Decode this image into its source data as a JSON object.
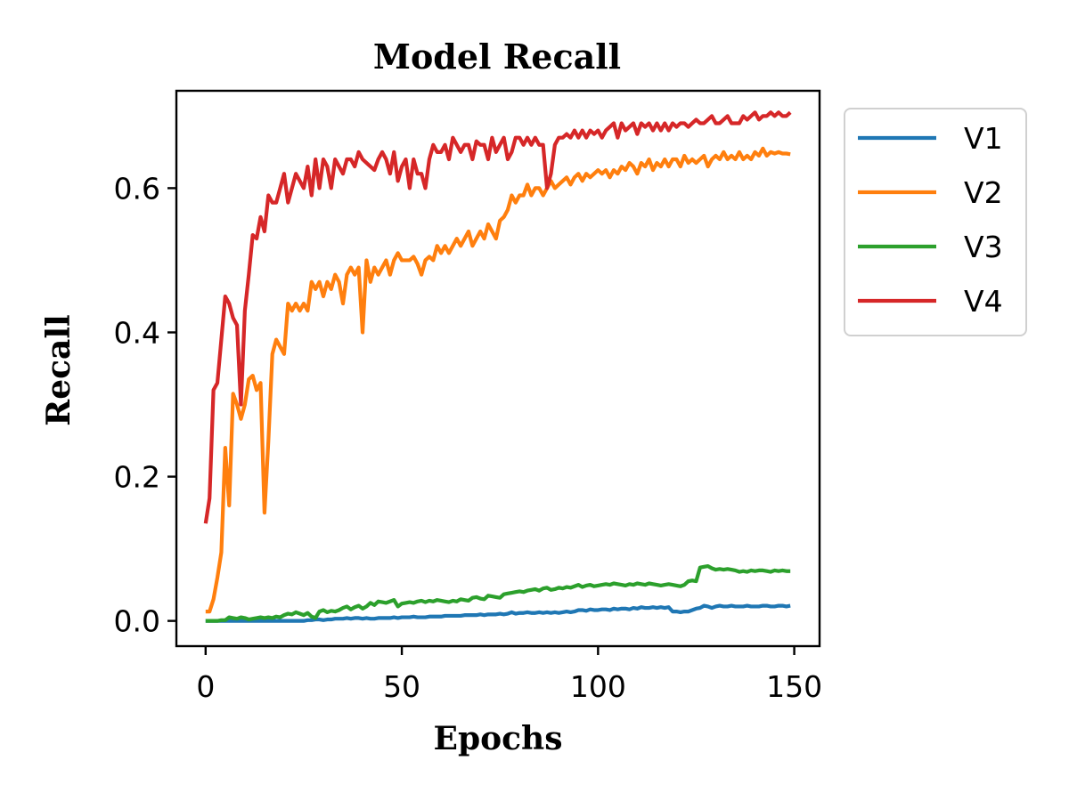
{
  "chart_data": {
    "type": "line",
    "title": "Model Recall",
    "xlabel": "Epochs",
    "ylabel": "Recall",
    "xlim": [
      -7.45,
      156.45
    ],
    "ylim": [
      -0.035,
      0.735
    ],
    "xticks": [
      0,
      50,
      100,
      150
    ],
    "xtick_labels": [
      "0",
      "50",
      "100",
      "150"
    ],
    "yticks": [
      0.0,
      0.2,
      0.4,
      0.6
    ],
    "ytick_labels": [
      "0.0",
      "0.2",
      "0.4",
      "0.6"
    ],
    "grid": false,
    "legend_position": "outside-right-top",
    "x": [
      0,
      1,
      2,
      3,
      4,
      5,
      6,
      7,
      8,
      9,
      10,
      11,
      12,
      13,
      14,
      15,
      16,
      17,
      18,
      19,
      20,
      21,
      22,
      23,
      24,
      25,
      26,
      27,
      28,
      29,
      30,
      31,
      32,
      33,
      34,
      35,
      36,
      37,
      38,
      39,
      40,
      41,
      42,
      43,
      44,
      45,
      46,
      47,
      48,
      49,
      50,
      51,
      52,
      53,
      54,
      55,
      56,
      57,
      58,
      59,
      60,
      61,
      62,
      63,
      64,
      65,
      66,
      67,
      68,
      69,
      70,
      71,
      72,
      73,
      74,
      75,
      76,
      77,
      78,
      79,
      80,
      81,
      82,
      83,
      84,
      85,
      86,
      87,
      88,
      89,
      90,
      91,
      92,
      93,
      94,
      95,
      96,
      97,
      98,
      99,
      100,
      101,
      102,
      103,
      104,
      105,
      106,
      107,
      108,
      109,
      110,
      111,
      112,
      113,
      114,
      115,
      116,
      117,
      118,
      119,
      120,
      121,
      122,
      123,
      124,
      125,
      126,
      127,
      128,
      129,
      130,
      131,
      132,
      133,
      134,
      135,
      136,
      137,
      138,
      139,
      140,
      141,
      142,
      143,
      144,
      145,
      146,
      147,
      148,
      149
    ],
    "series": [
      {
        "name": "V1",
        "color": "#1f77b4",
        "values": [
          0.0,
          0.0,
          0.0,
          0.0,
          0.0,
          0.0,
          0.0,
          0.0,
          0.0,
          0.0,
          0.0,
          0.0,
          0.0,
          0.0,
          0.0,
          0.0,
          0.0,
          0.0,
          0.0,
          0.0,
          0.0,
          0.0,
          0.0,
          0.0,
          0.0,
          0.0,
          0.001,
          0.001,
          0.002,
          0.002,
          0.001,
          0.002,
          0.002,
          0.003,
          0.003,
          0.003,
          0.004,
          0.003,
          0.004,
          0.004,
          0.003,
          0.004,
          0.003,
          0.003,
          0.004,
          0.004,
          0.004,
          0.004,
          0.005,
          0.004,
          0.005,
          0.005,
          0.005,
          0.006,
          0.005,
          0.005,
          0.005,
          0.006,
          0.006,
          0.006,
          0.006,
          0.007,
          0.007,
          0.007,
          0.007,
          0.007,
          0.008,
          0.008,
          0.008,
          0.008,
          0.009,
          0.008,
          0.009,
          0.009,
          0.009,
          0.01,
          0.009,
          0.01,
          0.012,
          0.01,
          0.011,
          0.011,
          0.012,
          0.011,
          0.011,
          0.012,
          0.011,
          0.012,
          0.011,
          0.012,
          0.011,
          0.012,
          0.013,
          0.012,
          0.013,
          0.015,
          0.015,
          0.014,
          0.016,
          0.015,
          0.015,
          0.016,
          0.016,
          0.015,
          0.017,
          0.016,
          0.017,
          0.017,
          0.016,
          0.018,
          0.017,
          0.019,
          0.018,
          0.018,
          0.019,
          0.018,
          0.019,
          0.018,
          0.019,
          0.013,
          0.013,
          0.012,
          0.013,
          0.013,
          0.015,
          0.017,
          0.018,
          0.021,
          0.02,
          0.018,
          0.02,
          0.021,
          0.02,
          0.02,
          0.021,
          0.02,
          0.02,
          0.02,
          0.021,
          0.02,
          0.02,
          0.02,
          0.021,
          0.021,
          0.02,
          0.02,
          0.021,
          0.021,
          0.02,
          0.021
        ]
      },
      {
        "name": "V2",
        "color": "#ff7f0e",
        "values": [
          0.013,
          0.013,
          0.03,
          0.06,
          0.095,
          0.24,
          0.16,
          0.315,
          0.3,
          0.28,
          0.3,
          0.335,
          0.34,
          0.32,
          0.33,
          0.15,
          0.25,
          0.37,
          0.39,
          0.38,
          0.37,
          0.44,
          0.43,
          0.44,
          0.43,
          0.44,
          0.43,
          0.47,
          0.46,
          0.47,
          0.45,
          0.47,
          0.46,
          0.48,
          0.47,
          0.44,
          0.48,
          0.49,
          0.48,
          0.49,
          0.4,
          0.5,
          0.47,
          0.49,
          0.48,
          0.49,
          0.5,
          0.48,
          0.5,
          0.51,
          0.5,
          0.5,
          0.5,
          0.505,
          0.495,
          0.48,
          0.5,
          0.505,
          0.5,
          0.52,
          0.51,
          0.52,
          0.51,
          0.52,
          0.53,
          0.52,
          0.53,
          0.54,
          0.52,
          0.53,
          0.54,
          0.53,
          0.55,
          0.54,
          0.53,
          0.555,
          0.56,
          0.57,
          0.59,
          0.58,
          0.59,
          0.59,
          0.605,
          0.59,
          0.6,
          0.6,
          0.59,
          0.6,
          0.61,
          0.6,
          0.605,
          0.61,
          0.615,
          0.605,
          0.615,
          0.62,
          0.61,
          0.62,
          0.615,
          0.62,
          0.625,
          0.62,
          0.625,
          0.615,
          0.625,
          0.62,
          0.63,
          0.625,
          0.635,
          0.63,
          0.62,
          0.635,
          0.63,
          0.64,
          0.625,
          0.635,
          0.63,
          0.64,
          0.63,
          0.64,
          0.64,
          0.63,
          0.645,
          0.635,
          0.64,
          0.635,
          0.64,
          0.645,
          0.63,
          0.64,
          0.645,
          0.64,
          0.65,
          0.64,
          0.645,
          0.64,
          0.65,
          0.64,
          0.645,
          0.64,
          0.65,
          0.645,
          0.655,
          0.645,
          0.65,
          0.648,
          0.65,
          0.648,
          0.648,
          0.647
        ]
      },
      {
        "name": "V3",
        "color": "#2ca02c",
        "values": [
          0.0,
          0.0,
          0.0,
          0.0,
          0.001,
          0.001,
          0.005,
          0.004,
          0.003,
          0.005,
          0.004,
          0.002,
          0.003,
          0.004,
          0.005,
          0.004,
          0.005,
          0.004,
          0.006,
          0.005,
          0.008,
          0.01,
          0.009,
          0.012,
          0.01,
          0.008,
          0.011,
          0.006,
          0.004,
          0.013,
          0.015,
          0.012,
          0.014,
          0.013,
          0.015,
          0.018,
          0.02,
          0.016,
          0.019,
          0.021,
          0.017,
          0.02,
          0.025,
          0.022,
          0.027,
          0.026,
          0.025,
          0.027,
          0.029,
          0.02,
          0.024,
          0.025,
          0.026,
          0.025,
          0.027,
          0.028,
          0.026,
          0.028,
          0.027,
          0.029,
          0.028,
          0.027,
          0.026,
          0.028,
          0.027,
          0.03,
          0.029,
          0.028,
          0.032,
          0.033,
          0.031,
          0.03,
          0.035,
          0.034,
          0.033,
          0.032,
          0.037,
          0.038,
          0.039,
          0.04,
          0.041,
          0.04,
          0.042,
          0.043,
          0.044,
          0.042,
          0.045,
          0.046,
          0.043,
          0.044,
          0.046,
          0.045,
          0.047,
          0.046,
          0.048,
          0.05,
          0.047,
          0.049,
          0.05,
          0.048,
          0.049,
          0.05,
          0.051,
          0.05,
          0.052,
          0.051,
          0.05,
          0.049,
          0.051,
          0.05,
          0.052,
          0.051,
          0.05,
          0.052,
          0.051,
          0.05,
          0.049,
          0.05,
          0.051,
          0.05,
          0.049,
          0.048,
          0.05,
          0.055,
          0.056,
          0.055,
          0.074,
          0.075,
          0.076,
          0.073,
          0.071,
          0.072,
          0.071,
          0.072,
          0.071,
          0.07,
          0.068,
          0.069,
          0.068,
          0.07,
          0.069,
          0.07,
          0.07,
          0.069,
          0.068,
          0.07,
          0.069,
          0.07,
          0.069,
          0.069
        ]
      },
      {
        "name": "V4",
        "color": "#d62728",
        "values": [
          0.135,
          0.17,
          0.32,
          0.33,
          0.39,
          0.45,
          0.44,
          0.42,
          0.41,
          0.3,
          0.43,
          0.48,
          0.535,
          0.53,
          0.56,
          0.54,
          0.59,
          0.58,
          0.58,
          0.6,
          0.62,
          0.58,
          0.6,
          0.62,
          0.61,
          0.6,
          0.63,
          0.59,
          0.64,
          0.6,
          0.64,
          0.63,
          0.6,
          0.64,
          0.63,
          0.62,
          0.64,
          0.64,
          0.63,
          0.65,
          0.64,
          0.635,
          0.63,
          0.625,
          0.64,
          0.65,
          0.64,
          0.62,
          0.65,
          0.61,
          0.63,
          0.64,
          0.6,
          0.64,
          0.62,
          0.62,
          0.6,
          0.64,
          0.66,
          0.65,
          0.65,
          0.66,
          0.64,
          0.67,
          0.66,
          0.65,
          0.66,
          0.66,
          0.64,
          0.665,
          0.66,
          0.66,
          0.64,
          0.67,
          0.65,
          0.66,
          0.67,
          0.64,
          0.65,
          0.67,
          0.67,
          0.66,
          0.67,
          0.66,
          0.67,
          0.66,
          0.66,
          0.6,
          0.62,
          0.66,
          0.67,
          0.67,
          0.675,
          0.67,
          0.68,
          0.67,
          0.68,
          0.67,
          0.68,
          0.675,
          0.68,
          0.67,
          0.68,
          0.685,
          0.69,
          0.67,
          0.69,
          0.68,
          0.685,
          0.69,
          0.675,
          0.69,
          0.685,
          0.69,
          0.68,
          0.69,
          0.68,
          0.69,
          0.68,
          0.69,
          0.685,
          0.69,
          0.69,
          0.685,
          0.69,
          0.695,
          0.69,
          0.69,
          0.695,
          0.7,
          0.69,
          0.69,
          0.695,
          0.7,
          0.69,
          0.69,
          0.69,
          0.7,
          0.695,
          0.7,
          0.705,
          0.695,
          0.7,
          0.7,
          0.705,
          0.7,
          0.705,
          0.7,
          0.7,
          0.705
        ]
      }
    ]
  }
}
